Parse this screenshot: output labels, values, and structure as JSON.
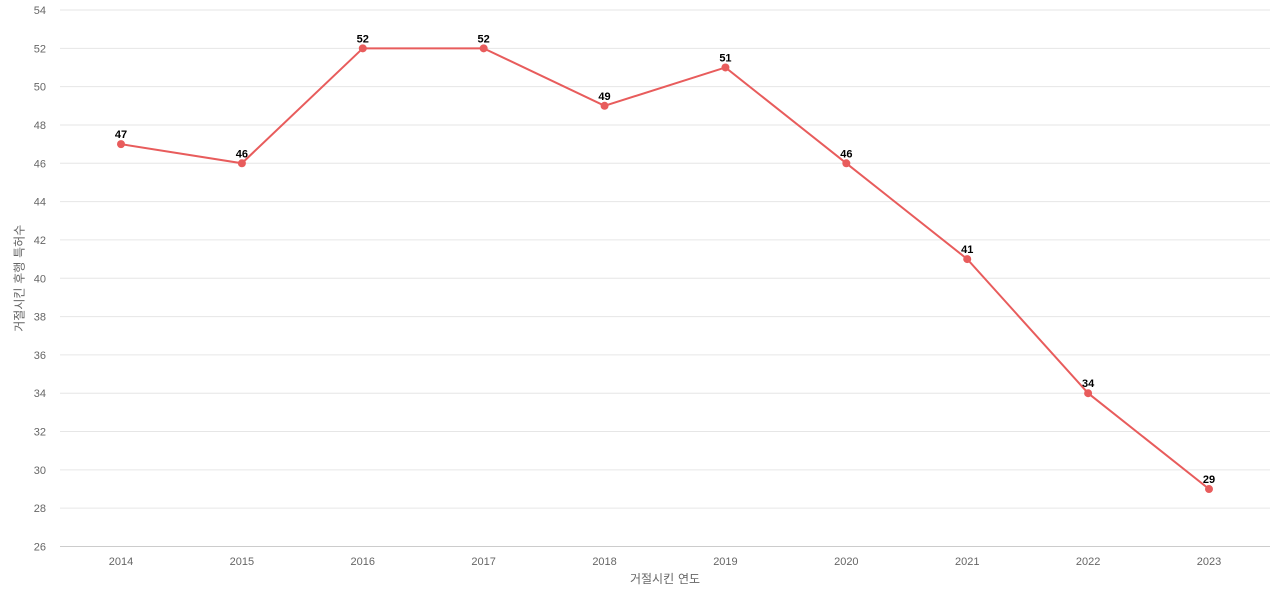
{
  "chart_data": {
    "type": "line",
    "title": "",
    "xlabel": "거절시킨 연도",
    "ylabel": "거절시킨 후행 특허수",
    "categories": [
      "2014",
      "2015",
      "2016",
      "2017",
      "2018",
      "2019",
      "2020",
      "2021",
      "2022",
      "2023"
    ],
    "series": [
      {
        "values": [
          47,
          46,
          52,
          52,
          49,
          51,
          46,
          41,
          34,
          29
        ],
        "color": "#e85c5c"
      }
    ],
    "ylim": [
      26,
      54
    ],
    "yticks": [
      26,
      28,
      30,
      32,
      34,
      36,
      38,
      40,
      42,
      44,
      46,
      48,
      50,
      52,
      54
    ],
    "grid": true,
    "data_labels": true,
    "legend": "none"
  }
}
